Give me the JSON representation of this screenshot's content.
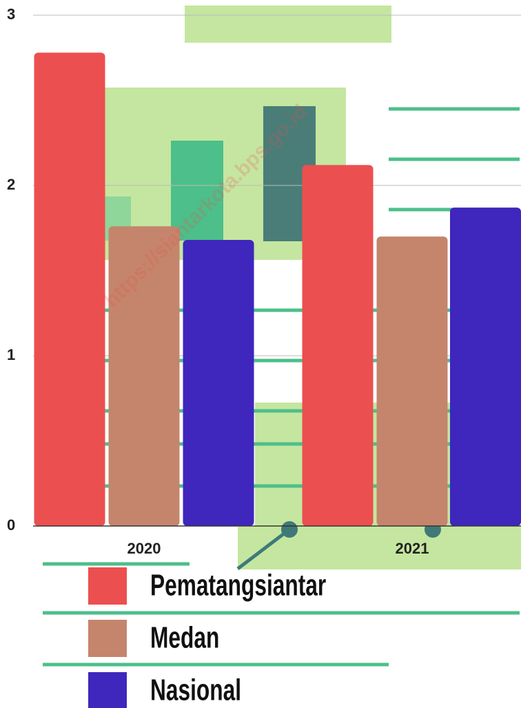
{
  "chart_data": {
    "type": "bar",
    "categories": [
      "2020",
      "2021"
    ],
    "series": [
      {
        "name": "Pematangsiantar",
        "color": "#ec4f4f",
        "values": [
          2.78,
          2.12
        ]
      },
      {
        "name": "Medan",
        "color": "#c4856c",
        "values": [
          1.76,
          1.7
        ]
      },
      {
        "name": "Nasional",
        "color": "#3f26bd",
        "values": [
          1.68,
          1.87
        ]
      }
    ],
    "ylim": [
      0,
      3
    ],
    "yticks": [
      0,
      1,
      2,
      3
    ],
    "grid": true,
    "watermark": "https://siantarkota.bps.go.id"
  }
}
